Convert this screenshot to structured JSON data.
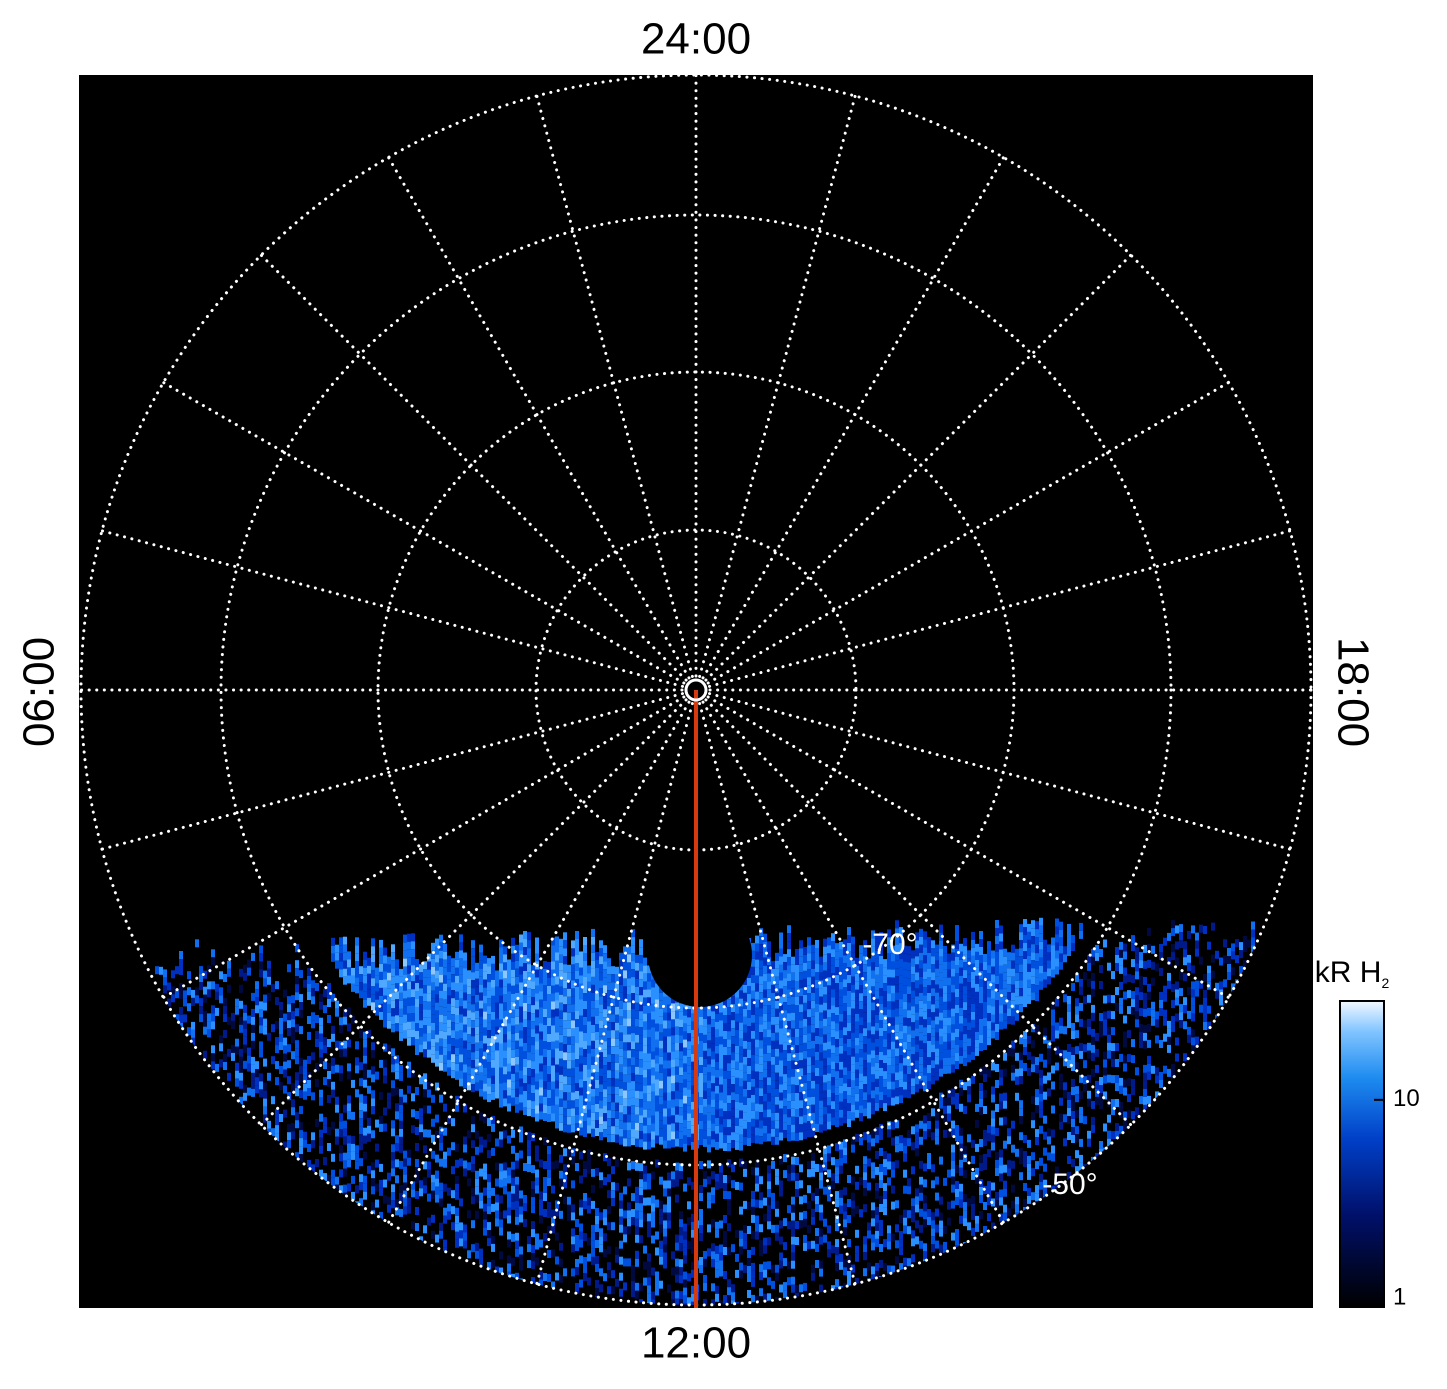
{
  "labels": {
    "top": "24:00",
    "bottom": "12:00",
    "left": "06:00",
    "right": "18:00"
  },
  "latitude_labels": [
    "-70°",
    "-50°"
  ],
  "colorbar": {
    "title": "kR H",
    "title_subscript": "2",
    "scale": "log",
    "lim": [
      1,
      30
    ],
    "ticks": [
      1,
      10
    ]
  }
}
